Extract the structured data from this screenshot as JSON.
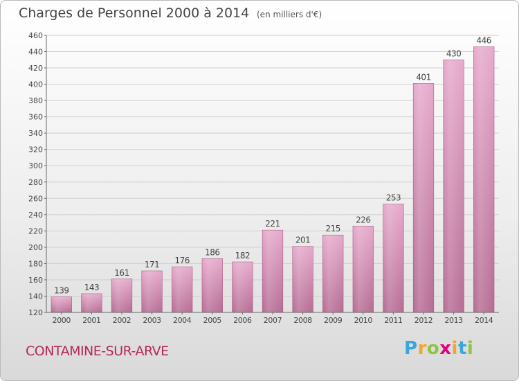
{
  "chart_data": {
    "type": "bar",
    "title": "Charges de Personnel 2000 à 2014",
    "subtitle": "(en milliers d'€)",
    "categories": [
      "2000",
      "2001",
      "2002",
      "2003",
      "2004",
      "2005",
      "2006",
      "2007",
      "2008",
      "2009",
      "2010",
      "2011",
      "2012",
      "2013",
      "2014"
    ],
    "values": [
      139,
      143,
      161,
      171,
      176,
      186,
      182,
      221,
      201,
      215,
      226,
      253,
      401,
      430,
      446
    ],
    "ylim": [
      120,
      460
    ],
    "yticks": [
      120,
      140,
      160,
      180,
      200,
      220,
      240,
      260,
      280,
      300,
      320,
      340,
      360,
      380,
      400,
      420,
      440,
      460
    ],
    "xlabel": "",
    "ylabel": "",
    "grid": true,
    "bar_color": "#d48fb4"
  },
  "footer": {
    "commune": "CONTAMINE-SUR-ARVE",
    "logo_letters": [
      "P",
      "r",
      "o",
      "x",
      "i",
      "t",
      "i"
    ],
    "logo_colors": [
      "#3aa7dc",
      "#f5a623",
      "#8cc63f",
      "#e2007a",
      "#f5a623",
      "#3aa7dc",
      "#8cc63f"
    ]
  }
}
